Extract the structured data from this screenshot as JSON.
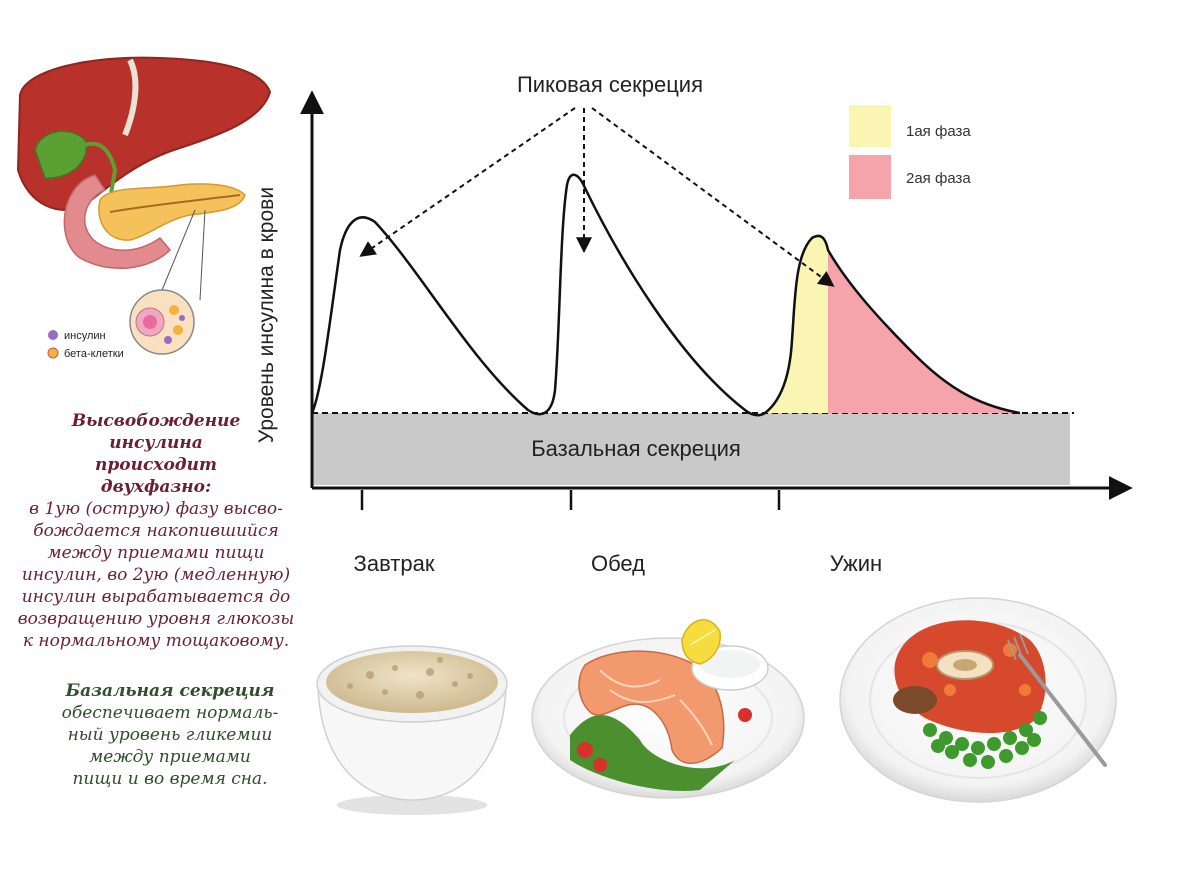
{
  "peak_label": "Пиковая секреция",
  "basal_label": "Базальная секреция",
  "y_axis_label": "Уровень инсулина в крови",
  "legend": [
    {
      "label": "1ая фаза",
      "color": "#fbf5b4"
    },
    {
      "label": "2ая фаза",
      "color": "#f6a4ac"
    }
  ],
  "meals": [
    "Завтрак",
    "Обед",
    "Ужин"
  ],
  "organ_legend": [
    {
      "label": "инсулин",
      "color": "#9a6bc2"
    },
    {
      "label": "бета-клетки",
      "color": "#f4b23c"
    }
  ],
  "release_note": {
    "heading": [
      "Высвобождение",
      "инсулина",
      "происходит",
      "двухфазно:"
    ],
    "body": [
      "в 1ую (острую) фазу высво-",
      "бождается накопившийся",
      "между приемами пищи",
      "инсулин, во 2ую (медленную)",
      "инсулин вырабатывается до",
      "возвращению уровня глюкозы",
      "к нормальному тощаковому."
    ]
  },
  "basal_note": {
    "heading": "Базальная секреция",
    "body": [
      "обеспечивает нормаль-",
      "ный уровень гликемии",
      "между приемами",
      "пищи и во время сна."
    ]
  },
  "colors": {
    "basal_fill": "#c9c9c9",
    "phase1": "#fbf5b4",
    "phase2": "#f6a4ac",
    "axis": "#111111",
    "release_text": "#6b1f32",
    "basal_text": "#2f4f2a"
  },
  "illustrations": [
    "liver-pancreas-illustration",
    "oatmeal-bowl-image",
    "salmon-plate-image",
    "stew-peas-plate-image"
  ]
}
